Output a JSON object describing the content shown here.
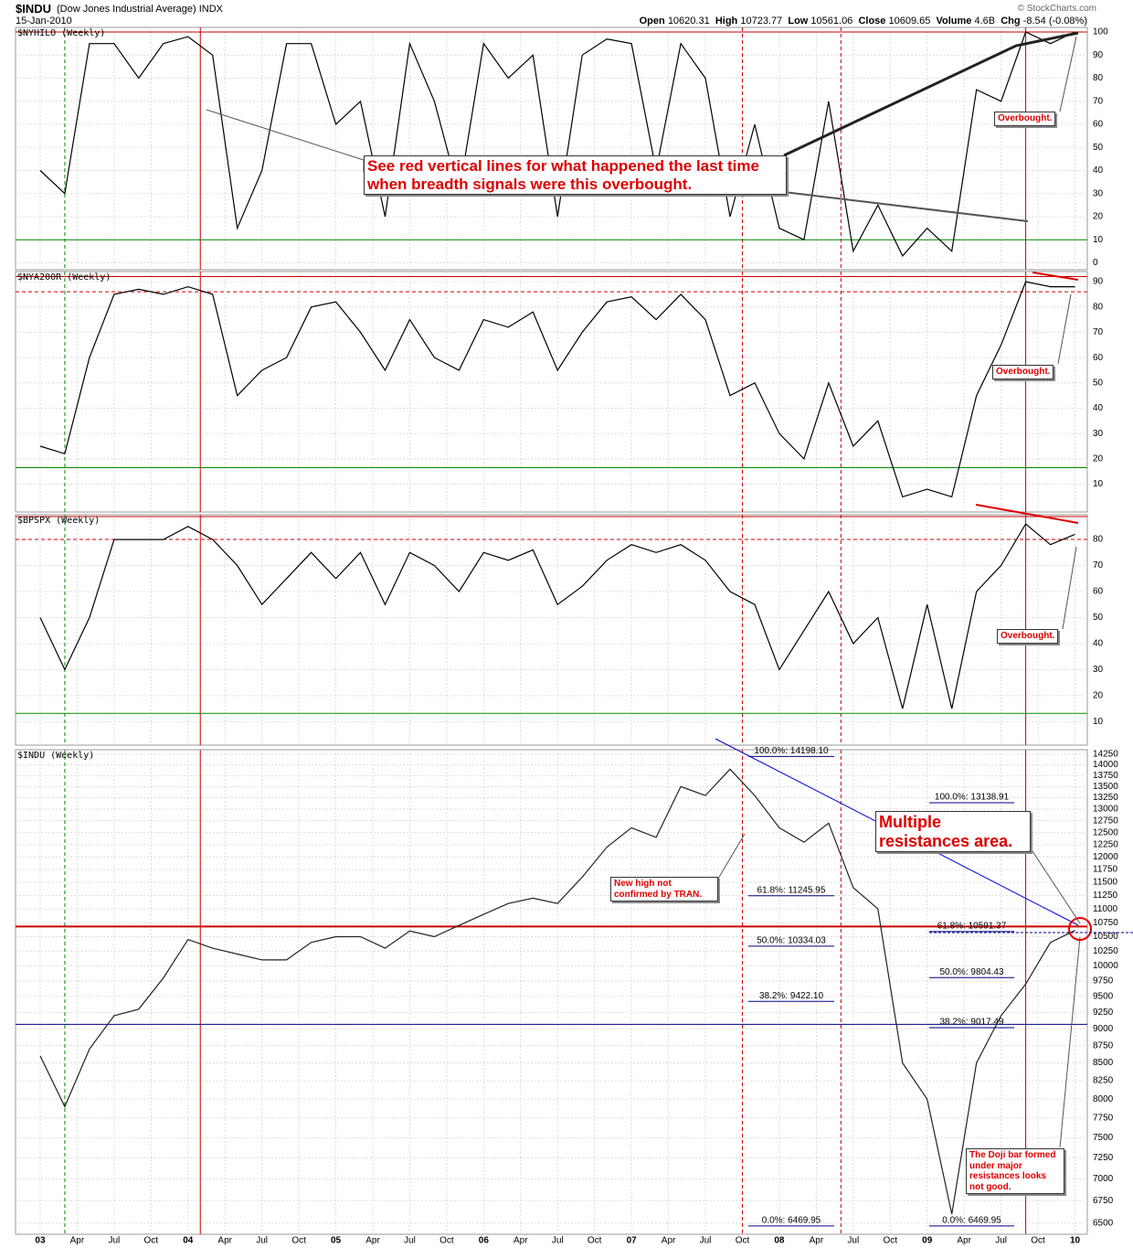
{
  "header": {
    "symbol": "$INDU",
    "name": "(Dow Jones Industrial Average) INDX",
    "date": "15-Jan-2010",
    "credit": "© StockCharts.com",
    "stats": [
      {
        "label": "Open",
        "value": "10620.31"
      },
      {
        "label": "High",
        "value": "10723.77"
      },
      {
        "label": "Low",
        "value": "10561.06"
      },
      {
        "label": "Close",
        "value": "10609.65"
      },
      {
        "label": "Volume",
        "value": "4.6B"
      },
      {
        "label": "Chg",
        "value": "-8.54 (-0.08%)"
      }
    ]
  },
  "chart_data": {
    "type": "stacked-panels",
    "grid": true,
    "x": [
      "2003-01",
      "2003-03",
      "2003-05",
      "2003-07",
      "2003-09",
      "2003-11",
      "2004-01",
      "2004-03",
      "2004-05",
      "2004-07",
      "2004-09",
      "2004-11",
      "2005-01",
      "2005-03",
      "2005-05",
      "2005-07",
      "2005-09",
      "2005-11",
      "2006-01",
      "2006-03",
      "2006-05",
      "2006-07",
      "2006-09",
      "2006-11",
      "2007-01",
      "2007-03",
      "2007-05",
      "2007-07",
      "2007-09",
      "2007-11",
      "2008-01",
      "2008-03",
      "2008-05",
      "2008-07",
      "2008-09",
      "2008-11",
      "2009-01",
      "2009-03",
      "2009-05",
      "2009-07",
      "2009-09",
      "2009-11",
      "2010-01"
    ],
    "xlim": [
      "2002-11",
      "2010-02"
    ],
    "xticks": [
      {
        "value": "2003-01",
        "label": "03"
      },
      {
        "value": "2003-04",
        "label": "Apr"
      },
      {
        "value": "2003-07",
        "label": "Jul"
      },
      {
        "value": "2003-10",
        "label": "Oct"
      },
      {
        "value": "2004-01",
        "label": "04"
      },
      {
        "value": "2004-04",
        "label": "Apr"
      },
      {
        "value": "2004-07",
        "label": "Jul"
      },
      {
        "value": "2004-10",
        "label": "Oct"
      },
      {
        "value": "2005-01",
        "label": "05"
      },
      {
        "value": "2005-04",
        "label": "Apr"
      },
      {
        "value": "2005-07",
        "label": "Jul"
      },
      {
        "value": "2005-10",
        "label": "Oct"
      },
      {
        "value": "2006-01",
        "label": "06"
      },
      {
        "value": "2006-04",
        "label": "Apr"
      },
      {
        "value": "2006-07",
        "label": "Jul"
      },
      {
        "value": "2006-10",
        "label": "Oct"
      },
      {
        "value": "2007-01",
        "label": "07"
      },
      {
        "value": "2007-04",
        "label": "Apr"
      },
      {
        "value": "2007-07",
        "label": "Jul"
      },
      {
        "value": "2007-10",
        "label": "Oct"
      },
      {
        "value": "2008-01",
        "label": "08"
      },
      {
        "value": "2008-04",
        "label": "Apr"
      },
      {
        "value": "2008-07",
        "label": "Jul"
      },
      {
        "value": "2008-10",
        "label": "Oct"
      },
      {
        "value": "2009-01",
        "label": "09"
      },
      {
        "value": "2009-04",
        "label": "Apr"
      },
      {
        "value": "2009-07",
        "label": "Jul"
      },
      {
        "value": "2009-10",
        "label": "Oct"
      },
      {
        "value": "2010-01",
        "label": "10"
      }
    ],
    "vlines": [
      {
        "x": "2003-03",
        "color": "#008800",
        "dashed": true
      },
      {
        "x": "2004-02",
        "color": "#cc0000",
        "dashed": false
      },
      {
        "x": "2007-10",
        "color": "#cc0000",
        "dashed": true
      },
      {
        "x": "2008-06",
        "color": "#cc0000",
        "dashed": true
      },
      {
        "x": "2009-09",
        "color": "#cc0000",
        "dashed": false
      }
    ],
    "panels": [
      {
        "type": "line",
        "series": [
          {
            "name": "$NYHILO (Weekly)",
            "color": "#000000",
            "values": [
              40,
              30,
              95,
              95,
              80,
              95,
              98,
              90,
              15,
              40,
              95,
              95,
              60,
              70,
              20,
              95,
              70,
              30,
              95,
              80,
              90,
              20,
              90,
              97,
              95,
              40,
              95,
              80,
              20,
              60,
              15,
              10,
              70,
              5,
              25,
              3,
              15,
              5,
              75,
              70,
              100,
              95,
              100
            ]
          }
        ],
        "ylim": [
          -3,
          102
        ],
        "yticks": [
          0,
          10,
          20,
          30,
          40,
          50,
          60,
          70,
          80,
          90,
          100
        ],
        "hlines": [
          {
            "value": 100,
            "color": "#cc0000"
          },
          {
            "value": 10,
            "color": "#008800"
          }
        ],
        "annotations": [
          "See red vertical lines for what happened the last time when breadth signals were this overbought.",
          "Overbought."
        ]
      },
      {
        "type": "line",
        "series": [
          {
            "name": "$NYA200R (Weekly)",
            "color": "#000000",
            "values": [
              25,
              22,
              60,
              85,
              87,
              85,
              88,
              85,
              45,
              55,
              60,
              80,
              82,
              70,
              55,
              75,
              60,
              55,
              75,
              72,
              78,
              55,
              70,
              82,
              84,
              75,
              85,
              75,
              45,
              50,
              30,
              20,
              50,
              25,
              35,
              5,
              8,
              5,
              45,
              65,
              90,
              88,
              88
            ]
          }
        ],
        "ylim": [
          -1,
          94
        ],
        "yticks": [
          10,
          20,
          30,
          40,
          50,
          60,
          70,
          80,
          90
        ],
        "hlines": [
          {
            "value": 92,
            "color": "#cc0000"
          },
          {
            "value": 86,
            "color": "#cc0000",
            "dashed": true
          },
          {
            "value": 16.5,
            "color": "#008800"
          }
        ],
        "annotations": [
          "Overbought."
        ]
      },
      {
        "type": "line",
        "series": [
          {
            "name": "$BPSPX (Weekly)",
            "color": "#000000",
            "values": [
              50,
              30,
              50,
              80,
              80,
              80,
              85,
              80,
              70,
              55,
              65,
              75,
              65,
              75,
              55,
              75,
              70,
              60,
              75,
              72,
              76,
              55,
              62,
              72,
              78,
              75,
              78,
              72,
              60,
              55,
              30,
              45,
              60,
              40,
              50,
              15,
              55,
              15,
              60,
              70,
              86,
              78,
              82
            ]
          }
        ],
        "ylim": [
          1,
          89.5
        ],
        "yticks": [
          10,
          20,
          30,
          40,
          50,
          60,
          70,
          80
        ],
        "hlines": [
          {
            "value": 88.8,
            "color": "#cc0000"
          },
          {
            "value": 80,
            "color": "#cc0000",
            "dashed": true
          },
          {
            "value": 13.2,
            "color": "#008800"
          }
        ],
        "annotations": [
          "Overbought."
        ]
      },
      {
        "type": "line",
        "log_scale": true,
        "series": [
          {
            "name": "$INDU (Weekly)",
            "color": "#222222",
            "values": [
              8600,
              7900,
              8700,
              9200,
              9300,
              9800,
              10450,
              10300,
              10200,
              10100,
              10100,
              10400,
              10500,
              10500,
              10300,
              10600,
              10500,
              10700,
              10900,
              11100,
              11200,
              11100,
              11600,
              12200,
              12600,
              12400,
              13500,
              13300,
              13900,
              13300,
              12600,
              12300,
              12700,
              11400,
              11000,
              8500,
              8000,
              6600,
              8500,
              9200,
              9700,
              10400,
              10610
            ]
          }
        ],
        "ylim": [
          6380,
          14360
        ],
        "yticks": [
          6500,
          6750,
          7000,
          7250,
          7500,
          7750,
          8000,
          8250,
          8500,
          8750,
          9000,
          9250,
          9500,
          9750,
          10000,
          10250,
          10500,
          10750,
          11000,
          11250,
          11500,
          11750,
          12000,
          12250,
          12500,
          12750,
          13000,
          13250,
          13500,
          13750,
          14000,
          14250
        ],
        "hlines": [
          {
            "value": 10680,
            "color": "#cc0000"
          },
          {
            "value": 9068,
            "color": "#000088"
          }
        ],
        "fib_sets": [
          [
            {
              "label": "100.0%: 14198.10",
              "value": 14198.1
            },
            {
              "label": "61.8%: 11245.95",
              "value": 11245.95
            },
            {
              "label": "50.0%: 10334.03",
              "value": 10334.03
            },
            {
              "label": "38.2%: 9422.10",
              "value": 9422.1
            },
            {
              "label": "0.0%: 6469.95",
              "value": 6469.95
            }
          ],
          [
            {
              "label": "100.0%: 13138.91",
              "value": 13138.91
            },
            {
              "label": "61.8%: 10591.37",
              "value": 10591.37
            },
            {
              "label": "50.0%: 9804.43",
              "value": 9804.43
            },
            {
              "label": "38.2%: 9017.49",
              "value": 9017.49
            },
            {
              "label": "0.0%: 6469.95",
              "value": 6469.95
            }
          ]
        ],
        "annotations": [
          "Multiple resistances area.",
          "New high not confirmed by TRAN.",
          "The Doji bar formed under major resistances looks not good."
        ]
      }
    ]
  }
}
